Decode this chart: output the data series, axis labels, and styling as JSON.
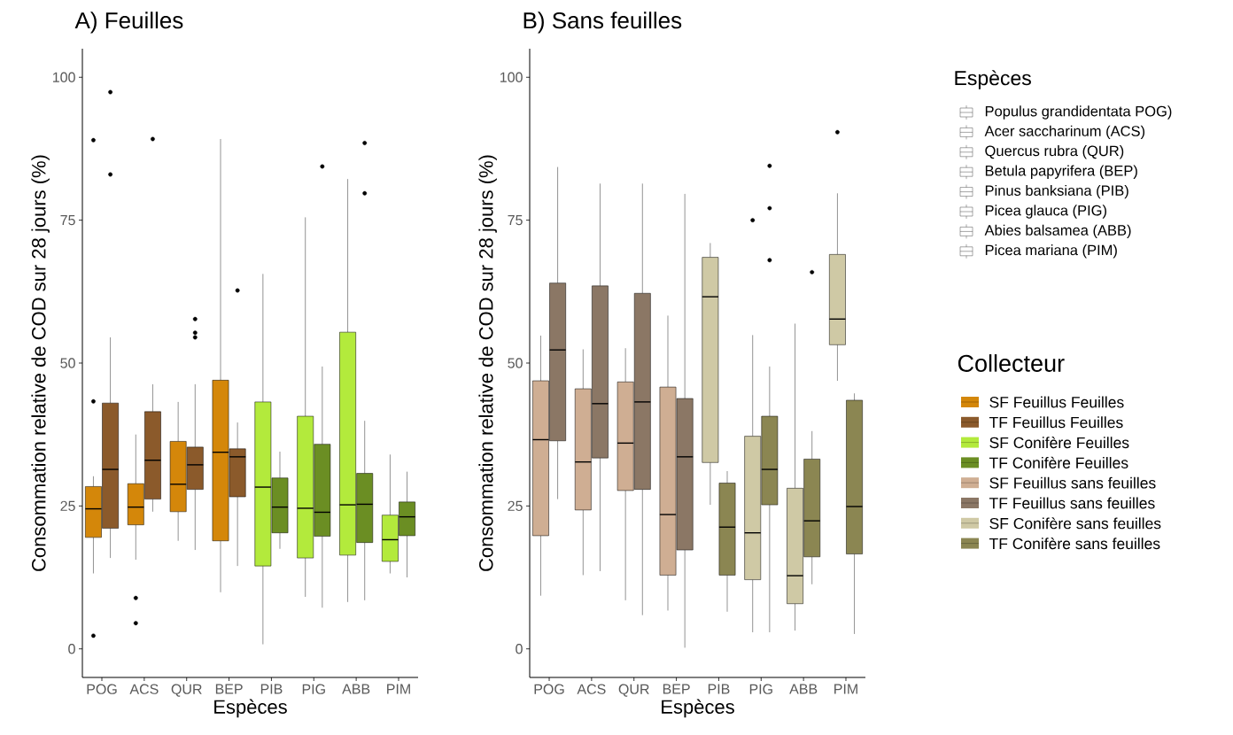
{
  "chart_data": [
    {
      "type": "box",
      "title": "A) Feuilles",
      "xlabel": "Espèces",
      "ylabel": "Consommation relative de COD sur 28 jours (%)",
      "categories": [
        "POG",
        "ACS",
        "QUR",
        "BEP",
        "PIB",
        "PIG",
        "ABB",
        "PIM"
      ],
      "ylim": [
        -5,
        105
      ],
      "yticks": [
        0,
        25,
        50,
        75,
        100
      ],
      "legend": "right",
      "series": [
        {
          "name": "SF Feuillus Feuilles",
          "color": "#d4870a",
          "boxes": [
            {
              "low": 13.2,
              "q1": 19.5,
              "median": 24.5,
              "q3": 28.4,
              "high": 30.2,
              "outliers": [
                89,
                43.3,
                2.3
              ]
            },
            {
              "low": 15.6,
              "q1": 21.7,
              "median": 24.8,
              "q3": 28.9,
              "high": 37.5,
              "outliers": [
                8.9,
                4.5
              ]
            },
            {
              "low": 18.9,
              "q1": 24,
              "median": 28.8,
              "q3": 36.3,
              "high": 43.2
            },
            {
              "low": 9.9,
              "q1": 18.9,
              "median": 34.4,
              "q3": 47,
              "high": 89.2
            },
            null,
            null,
            null,
            null
          ]
        },
        {
          "name": "TF Feuillus Feuilles",
          "color": "#8b5a2b",
          "boxes": [
            {
              "low": 15.9,
              "q1": 21.1,
              "median": 31.4,
              "q3": 43,
              "high": 54.5,
              "outliers": [
                97.4,
                83
              ]
            },
            {
              "low": 24,
              "q1": 26.2,
              "median": 33,
              "q3": 41.5,
              "high": 46.3,
              "outliers": [
                89.2
              ]
            },
            {
              "low": 17.3,
              "q1": 27.9,
              "median": 32.2,
              "q3": 35.3,
              "high": 46.3,
              "outliers": [
                57.7,
                55.3,
                54.5
              ]
            },
            {
              "low": 14.5,
              "q1": 26.6,
              "median": 33.6,
              "q3": 35,
              "high": 39.6,
              "outliers": [
                62.7
              ]
            },
            null,
            null,
            null,
            null
          ]
        },
        {
          "name": "SF Conifère Feuilles",
          "color": "#b3ea3c",
          "boxes": [
            null,
            null,
            null,
            null,
            {
              "low": 0.8,
              "q1": 14.5,
              "median": 28.3,
              "q3": 43.2,
              "high": 65.6
            },
            {
              "low": 9.1,
              "q1": 15.9,
              "median": 24.6,
              "q3": 40.7,
              "high": 75.5
            },
            {
              "low": 8.2,
              "q1": 16.4,
              "median": 25.2,
              "q3": 55.4,
              "high": 82.2
            },
            {
              "low": 13.2,
              "q1": 15.3,
              "median": 19.1,
              "q3": 23.4,
              "high": 34
            }
          ]
        },
        {
          "name": "TF Conifère Feuilles",
          "color": "#6b8e23",
          "boxes": [
            null,
            null,
            null,
            null,
            {
              "low": 17.5,
              "q1": 20.3,
              "median": 24.8,
              "q3": 29.9,
              "high": 34.5
            },
            {
              "low": 7.2,
              "q1": 19.7,
              "median": 23.9,
              "q3": 35.8,
              "high": 49.4,
              "outliers": [
                84.4
              ]
            },
            {
              "low": 8.5,
              "q1": 18.6,
              "median": 25.3,
              "q3": 30.7,
              "high": 39.9,
              "outliers": [
                88.5,
                79.7
              ]
            },
            {
              "low": 12.5,
              "q1": 19.8,
              "median": 23.1,
              "q3": 25.7,
              "high": 31
            }
          ]
        }
      ]
    },
    {
      "type": "box",
      "title": "B) Sans feuilles",
      "xlabel": "Espèces",
      "ylabel": "Consommation relative de COD sur 28 jours (%)",
      "categories": [
        "POG",
        "ACS",
        "QUR",
        "BEP",
        "PIB",
        "PIG",
        "ABB",
        "PIM"
      ],
      "ylim": [
        -5,
        105
      ],
      "yticks": [
        0,
        25,
        50,
        75,
        100
      ],
      "legend": "right",
      "legend_title": "Collecteur",
      "annotations": [
        "Espèces",
        "Populus grandidentata POG)",
        "Acer saccharinum (ACS)",
        "Quercus rubra (QUR)",
        "Betula papyrifera (BEP)",
        "Pinus banksiana (PIB)",
        "Picea glauca (PIG)",
        "Abies balsamea (ABB)",
        "Picea mariana (PIM)"
      ],
      "series": [
        {
          "name": "SF Feuillus sans feuilles",
          "color": "#cfae93",
          "boxes": [
            {
              "low": 9.3,
              "q1": 19.8,
              "median": 36.6,
              "q3": 46.9,
              "high": 54.8
            },
            {
              "low": 12.9,
              "q1": 24.3,
              "median": 32.7,
              "q3": 45.5,
              "high": 52.4
            },
            {
              "low": 8.5,
              "q1": 27.7,
              "median": 36,
              "q3": 46.7,
              "high": 52.6
            },
            {
              "low": 6.7,
              "q1": 12.9,
              "median": 23.5,
              "q3": 45.8,
              "high": 58.3
            },
            null,
            null,
            null,
            null
          ]
        },
        {
          "name": "TF Feuillus sans feuilles",
          "color": "#8b7765",
          "boxes": [
            {
              "low": 26.2,
              "q1": 36.4,
              "median": 52.3,
              "q3": 64,
              "high": 84.3
            },
            {
              "low": 13.6,
              "q1": 33.4,
              "median": 42.9,
              "q3": 63.5,
              "high": 81.4
            },
            {
              "low": 5.9,
              "q1": 27.9,
              "median": 43.2,
              "q3": 62.2,
              "high": 81.4
            },
            {
              "low": 0.2,
              "q1": 17.3,
              "median": 33.6,
              "q3": 43.8,
              "high": 79.6
            },
            null,
            null,
            null,
            null
          ]
        },
        {
          "name": "SF Conifère sans feuilles",
          "color": "#cfc9a5",
          "boxes": [
            null,
            null,
            null,
            null,
            {
              "low": 25.2,
              "q1": 32.6,
              "median": 61.6,
              "q3": 68.5,
              "high": 71
            },
            {
              "low": 2.9,
              "q1": 12.1,
              "median": 20.3,
              "q3": 37.2,
              "high": 54.9,
              "outliers": [
                75
              ]
            },
            {
              "low": 3.2,
              "q1": 7.9,
              "median": 12.8,
              "q3": 28.1,
              "high": 56.9
            },
            {
              "low": 46.9,
              "q1": 53.2,
              "median": 57.7,
              "q3": 69,
              "high": 79.7,
              "outliers": [
                90.4
              ]
            }
          ]
        },
        {
          "name": "TF Conifère sans feuilles",
          "color": "#8b8652",
          "boxes": [
            null,
            null,
            null,
            null,
            {
              "low": 6.5,
              "q1": 12.9,
              "median": 21.3,
              "q3": 29,
              "high": 31.1
            },
            {
              "low": 2.9,
              "q1": 25.2,
              "median": 31.4,
              "q3": 40.7,
              "high": 49.4,
              "outliers": [
                84.5,
                77.1,
                68
              ]
            },
            {
              "low": 11.3,
              "q1": 16.1,
              "median": 22.4,
              "q3": 33.2,
              "high": 38.1,
              "outliers": [
                65.9
              ]
            },
            {
              "low": 2.6,
              "q1": 16.6,
              "median": 24.9,
              "q3": 43.5,
              "high": 44.7
            }
          ]
        }
      ]
    }
  ]
}
